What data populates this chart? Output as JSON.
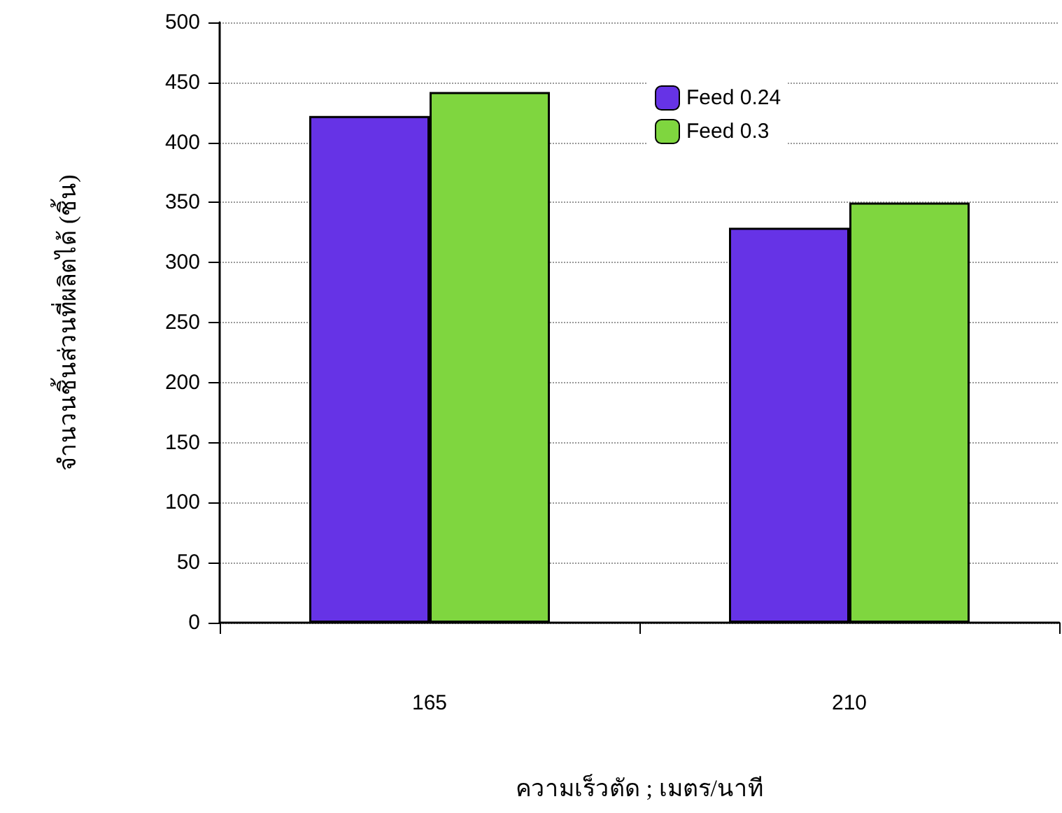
{
  "chart_data": {
    "type": "bar",
    "xlabel": "ความเร็วตัด ; เมตร/นาที",
    "ylabel": "จำนวนชิ้นส่วนที่ผลิตได้ (ชิ้น)",
    "categories": [
      "165",
      "210"
    ],
    "series": [
      {
        "name": "Feed 0.24",
        "color": "#6633e6",
        "values": [
          422,
          329
        ]
      },
      {
        "name": "Feed 0.3",
        "color": "#7fd63f",
        "values": [
          442,
          350
        ]
      }
    ],
    "ylim": [
      0,
      500
    ],
    "yticks": [
      0,
      50,
      100,
      150,
      200,
      250,
      300,
      350,
      400,
      450,
      500
    ],
    "grid": "y",
    "legend": "top right"
  }
}
